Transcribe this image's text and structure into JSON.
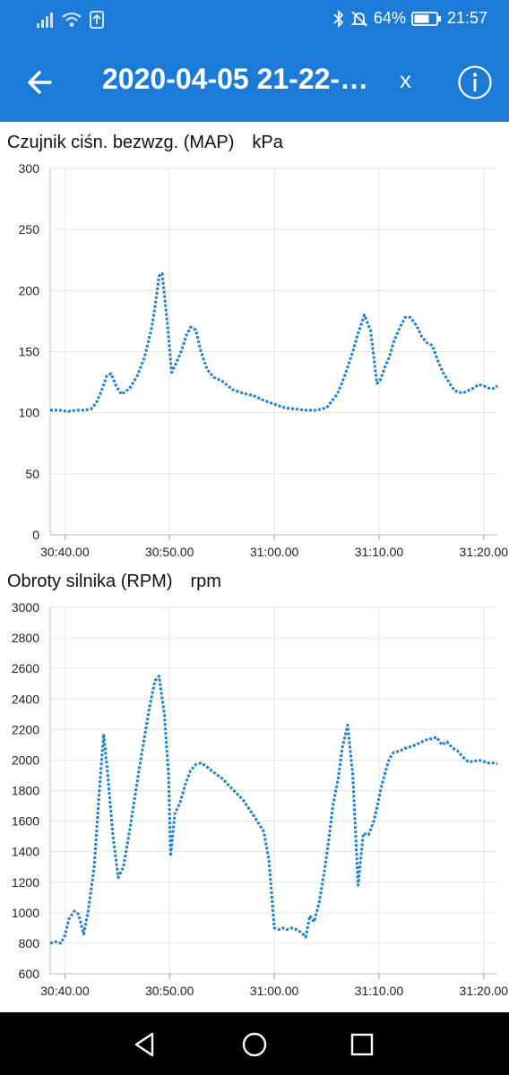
{
  "status_bar": {
    "battery": "64%",
    "time": "21:57"
  },
  "header": {
    "title": "2020-04-05 21-22-…",
    "close_label": "x"
  },
  "chart_data": [
    {
      "type": "line",
      "title": "Czujnik ciśn. bezwzg. (MAP)",
      "unit": "kPa",
      "xlabel": "",
      "ylabel": "",
      "ylim": [
        0,
        300
      ],
      "yticks": [
        "0",
        "50",
        "100",
        "150",
        "200",
        "250",
        "300"
      ],
      "xticks": [
        "30:40.00",
        "30:50.00",
        "31:00.00",
        "31:10.00",
        "31:20.00"
      ],
      "xtick_seconds": [
        40,
        50,
        60,
        70,
        80
      ],
      "xlim": [
        38.6,
        81.3
      ],
      "grid": true,
      "color": "#1f7fd0",
      "x": [
        38.6,
        39.5,
        40.3,
        41,
        41.8,
        42.5,
        43,
        43.5,
        44,
        44.4,
        44.9,
        45.4,
        46.2,
        46.9,
        47.6,
        48.3,
        48.7,
        49,
        49.3,
        49.8,
        50.2,
        50.6,
        51.1,
        51.6,
        52,
        52.5,
        53,
        53.6,
        54.2,
        55,
        56,
        57,
        58,
        59,
        60,
        61,
        62,
        63,
        64,
        65,
        66,
        66.5,
        67,
        67.5,
        68,
        68.6,
        69.2,
        69.8,
        70.1,
        70.5,
        71,
        71.4,
        72,
        72.5,
        73,
        73.6,
        74.1,
        74.6,
        75.1,
        75.6,
        76.1,
        76.6,
        77.2,
        78,
        78.5,
        79,
        79.5,
        80,
        80.5,
        81,
        81.3
      ],
      "y": [
        102,
        102,
        101,
        102,
        102,
        103,
        108,
        118,
        130,
        132,
        122,
        115,
        120,
        130,
        145,
        170,
        192,
        212,
        214,
        172,
        133,
        140,
        150,
        163,
        170,
        168,
        150,
        135,
        129,
        126,
        119,
        116,
        114,
        110,
        107,
        104,
        103,
        102,
        102,
        104,
        115,
        125,
        137,
        150,
        165,
        180,
        167,
        124,
        126,
        136,
        146,
        158,
        170,
        178,
        178,
        171,
        162,
        157,
        155,
        143,
        133,
        126,
        118,
        116,
        118,
        120,
        123,
        122,
        120,
        120,
        122
      ]
    },
    {
      "type": "line",
      "title": "Obroty silnika (RPM)",
      "unit": "rpm",
      "xlabel": "",
      "ylabel": "",
      "ylim": [
        600,
        3000
      ],
      "yticks": [
        "600",
        "800",
        "1000",
        "1200",
        "1400",
        "1600",
        "1800",
        "2000",
        "2200",
        "2400",
        "2600",
        "2800",
        "3000"
      ],
      "xticks": [
        "30:40.00",
        "30:50.00",
        "31:00.00",
        "31:10.00",
        "31:20.00"
      ],
      "xtick_seconds": [
        40,
        50,
        60,
        70,
        80
      ],
      "xlim": [
        38.6,
        81.3
      ],
      "grid": true,
      "color": "#1f7fd0",
      "x": [
        38.6,
        39.1,
        39.6,
        40,
        40.4,
        40.9,
        41.3,
        41.8,
        42.2,
        42.8,
        43.3,
        43.7,
        44.1,
        44.6,
        45.1,
        45.6,
        46.1,
        46.6,
        47.1,
        47.6,
        48.1,
        48.6,
        49,
        49.5,
        49.9,
        50.1,
        50.5,
        51,
        51.5,
        52,
        52.5,
        53,
        53.5,
        54,
        55,
        56,
        57,
        58,
        59,
        59.5,
        60,
        60.4,
        60.8,
        61.2,
        61.6,
        62.1,
        62.6,
        63,
        63.4,
        63.8,
        64.3,
        64.8,
        65.2,
        65.6,
        66.1,
        66.5,
        67,
        67.5,
        68,
        68.5,
        69,
        69.5,
        69.9,
        70.2,
        70.6,
        71,
        71.4,
        72,
        72.6,
        73.2,
        73.8,
        74.4,
        75,
        75.5,
        76,
        76.5,
        77,
        77.5,
        78,
        78.5,
        79,
        79.5,
        80,
        80.5,
        81,
        81.3
      ],
      "y": [
        800,
        810,
        800,
        850,
        960,
        1010,
        990,
        860,
        1000,
        1300,
        1800,
        2170,
        1900,
        1500,
        1230,
        1300,
        1500,
        1720,
        1940,
        2150,
        2350,
        2520,
        2550,
        2300,
        1900,
        1370,
        1650,
        1720,
        1840,
        1930,
        1970,
        1980,
        1960,
        1930,
        1880,
        1810,
        1740,
        1640,
        1530,
        1340,
        900,
        890,
        900,
        890,
        900,
        890,
        870,
        840,
        980,
        940,
        1070,
        1280,
        1480,
        1700,
        1880,
        2080,
        2230,
        1900,
        1180,
        1520,
        1510,
        1600,
        1720,
        1820,
        1920,
        2010,
        2050,
        2060,
        2080,
        2090,
        2110,
        2130,
        2140,
        2150,
        2100,
        2120,
        2080,
        2060,
        2020,
        1990,
        1990,
        2000,
        1990,
        1980,
        1980,
        1975
      ]
    }
  ]
}
